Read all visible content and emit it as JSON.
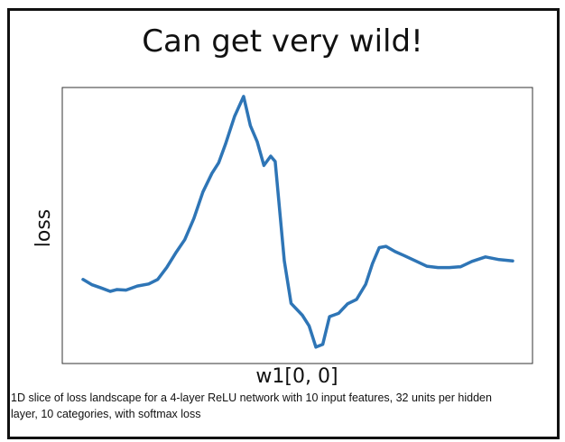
{
  "slide": {
    "title": "Can get very wild!",
    "caption": "1D slice of loss landscape for a 4-layer ReLU network with 10 input features, 32 units per hidden layer, 10 categories, with softmax loss"
  },
  "chart_data": {
    "type": "line",
    "xlabel": "w1[0, 0]",
    "ylabel": "loss",
    "xlim": [
      0,
      1
    ],
    "ylim": [
      0,
      1
    ],
    "grid": false,
    "legend": "none",
    "line_color": "#2e75b6",
    "series": [
      {
        "x": [
          0.0,
          0.02,
          0.04,
          0.06,
          0.075,
          0.095,
          0.12,
          0.145,
          0.165,
          0.185,
          0.205,
          0.225,
          0.245,
          0.265,
          0.285,
          0.3,
          0.315,
          0.335,
          0.355,
          0.37,
          0.385,
          0.4,
          0.415,
          0.425,
          0.445,
          0.46,
          0.485,
          0.5,
          0.515,
          0.53,
          0.545,
          0.565,
          0.585,
          0.605,
          0.625,
          0.64,
          0.655,
          0.67,
          0.69,
          0.71,
          0.735,
          0.76,
          0.785,
          0.81,
          0.835,
          0.86,
          0.89,
          0.92,
          0.95
        ],
        "y": [
          0.3,
          0.28,
          0.268,
          0.255,
          0.262,
          0.26,
          0.275,
          0.283,
          0.3,
          0.345,
          0.4,
          0.45,
          0.53,
          0.63,
          0.7,
          0.74,
          0.81,
          0.915,
          0.99,
          0.88,
          0.82,
          0.73,
          0.765,
          0.745,
          0.37,
          0.21,
          0.165,
          0.125,
          0.045,
          0.055,
          0.16,
          0.172,
          0.208,
          0.225,
          0.282,
          0.36,
          0.42,
          0.425,
          0.405,
          0.39,
          0.37,
          0.35,
          0.345,
          0.345,
          0.348,
          0.368,
          0.385,
          0.375,
          0.37
        ]
      }
    ]
  }
}
